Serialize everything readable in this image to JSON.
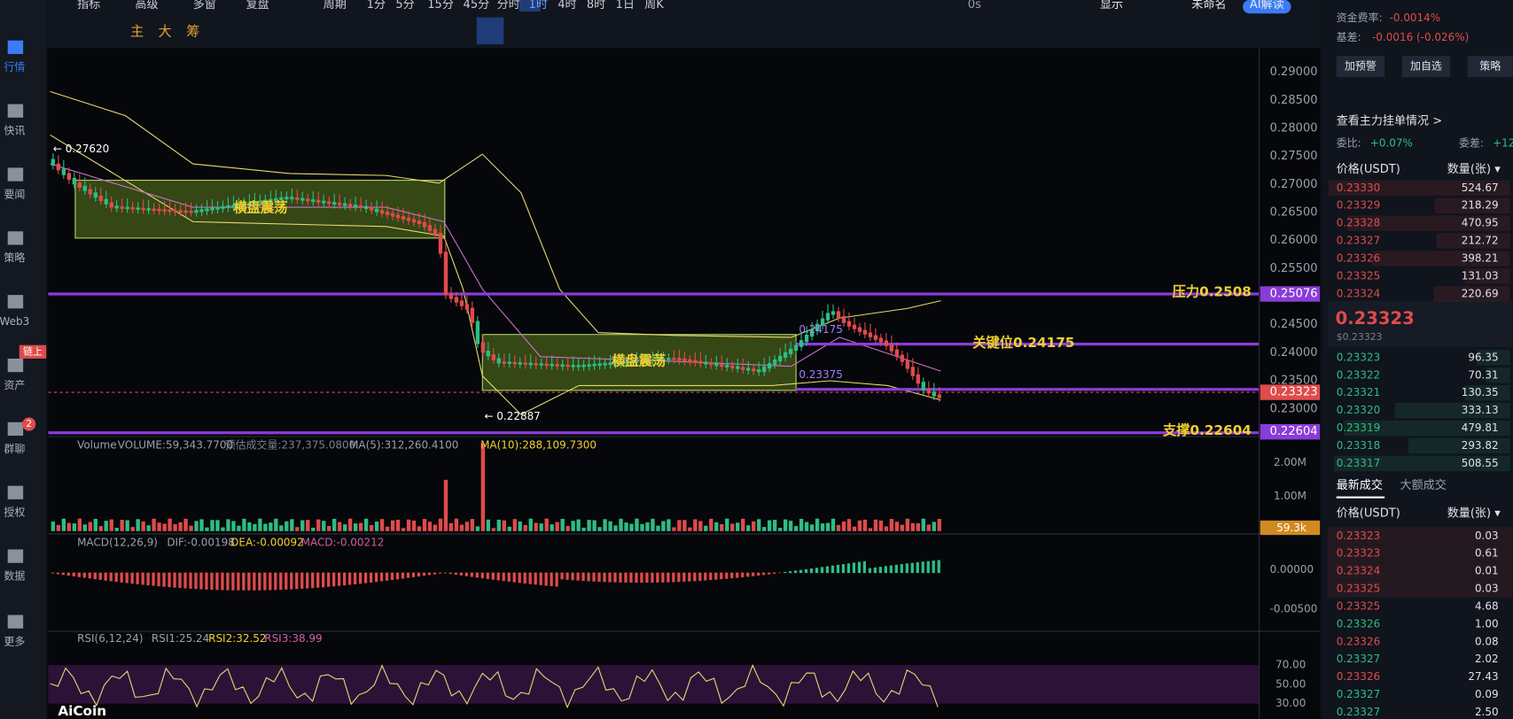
{
  "toolbar": {
    "items": [
      "指标",
      "高级",
      "多窗",
      "复盘",
      "周期",
      "1分",
      "5分",
      "15分",
      "45分",
      "分时",
      "1时",
      "4时",
      "8时",
      "1日",
      "周K"
    ],
    "status": "0s",
    "right": [
      "显示",
      "未命名",
      "AI解读"
    ]
  },
  "drawing_tools": [
    "主",
    "大",
    "筹"
  ],
  "sidebar": {
    "items": [
      "行情",
      "快讯",
      "要闻",
      "策略",
      "Web3",
      "资产",
      "群聊",
      "授权",
      "数据",
      "更多"
    ],
    "badges": [
      "链上",
      "2"
    ]
  },
  "chart": {
    "price_axis": [
      "0.29000",
      "0.28500",
      "0.28000",
      "0.27500",
      "0.27000",
      "0.26500",
      "0.26000",
      "0.25500",
      "0.25000",
      "0.24500",
      "0.24000",
      "0.23500",
      "0.23000"
    ],
    "ranges": [
      "横盘震荡",
      "横盘震荡"
    ],
    "levels": {
      "pressure": "压力0.2508",
      "key": "关键位0.24175",
      "support": "支撑0.22604"
    },
    "price_tags": {
      "pressure": "0.25076",
      "current": "0.23323",
      "support": "0.22604"
    },
    "marks": {
      "high": "← 0.27620",
      "low": "← 0.22887",
      "key_left": "0.24175",
      "box_low": "0.23375"
    },
    "volume": {
      "header": [
        "Volume",
        "VOLUME:59,343.7700",
        "预估成交量:237,375.0800",
        "MA(5):312,260.4100",
        "MA(10):288,109.7300"
      ],
      "axis": [
        "2.00M",
        "1.00M"
      ],
      "tag": "59.3k"
    },
    "macd": {
      "header": [
        "MACD(12,26,9)",
        "DIF:-0.00198",
        "DEA:-0.00092",
        "MACD:-0.00212"
      ],
      "axis": [
        "0.00000",
        "-0.00500"
      ]
    },
    "rsi": {
      "header": [
        "RSI(6,12,24)",
        "RSI1:25.24",
        "RSI2:32.52",
        "RSI3:38.99"
      ],
      "axis": [
        "70.00",
        "50.00",
        "30.00"
      ]
    },
    "logo": "AiCoin"
  },
  "panel": {
    "funding_label": "资金费率:",
    "funding": "-0.0014%",
    "basis_label": "基差:",
    "basis": "-0.0016 (-0.026%)",
    "buttons": [
      "加预警",
      "加自选",
      "策略"
    ],
    "orders_link": "查看主力挂单情况 >",
    "ratio_label": "委比:",
    "ratio": "+0.07%",
    "diff_label": "委差:",
    "diff": "+12",
    "book_header": [
      "价格(USDT)",
      "数量(张) ▾"
    ],
    "asks": [
      [
        "0.23330",
        "524.67"
      ],
      [
        "0.23329",
        "218.29"
      ],
      [
        "0.23328",
        "470.95"
      ],
      [
        "0.23327",
        "212.72"
      ],
      [
        "0.23326",
        "398.21"
      ],
      [
        "0.23325",
        "131.03"
      ],
      [
        "0.23324",
        "220.69"
      ]
    ],
    "last": "0.23323",
    "last_usd": "$0.23323",
    "bids": [
      [
        "0.23323",
        "96.35"
      ],
      [
        "0.23322",
        "70.31"
      ],
      [
        "0.23321",
        "130.35"
      ],
      [
        "0.23320",
        "333.13"
      ],
      [
        "0.23319",
        "479.81"
      ],
      [
        "0.23318",
        "293.82"
      ],
      [
        "0.23317",
        "508.55"
      ]
    ],
    "tabs": [
      "最新成交",
      "大额成交"
    ],
    "trades_header": [
      "价格(USDT)",
      "数量(张) ▾"
    ],
    "trades": [
      {
        "price": "0.23323",
        "qty": "0.03",
        "color": "#e04b4b"
      },
      {
        "price": "0.23323",
        "qty": "0.61",
        "color": "#e04b4b"
      },
      {
        "price": "0.23324",
        "qty": "0.01",
        "color": "#e04b4b"
      },
      {
        "price": "0.23325",
        "qty": "0.03",
        "color": "#e04b4b"
      },
      {
        "price": "0.23325",
        "qty": "4.68",
        "color": "#e04b4b"
      },
      {
        "price": "0.23326",
        "qty": "1.00",
        "color": "#2ebd85"
      },
      {
        "price": "0.23326",
        "qty": "0.08",
        "color": "#e04b4b"
      },
      {
        "price": "0.23327",
        "qty": "2.02",
        "color": "#2ebd85"
      },
      {
        "price": "0.23326",
        "qty": "27.43",
        "color": "#e04b4b"
      },
      {
        "price": "0.23327",
        "qty": "0.09",
        "color": "#2ebd85"
      },
      {
        "price": "0.23327",
        "qty": "2.50",
        "color": "#2ebd85"
      }
    ]
  }
}
